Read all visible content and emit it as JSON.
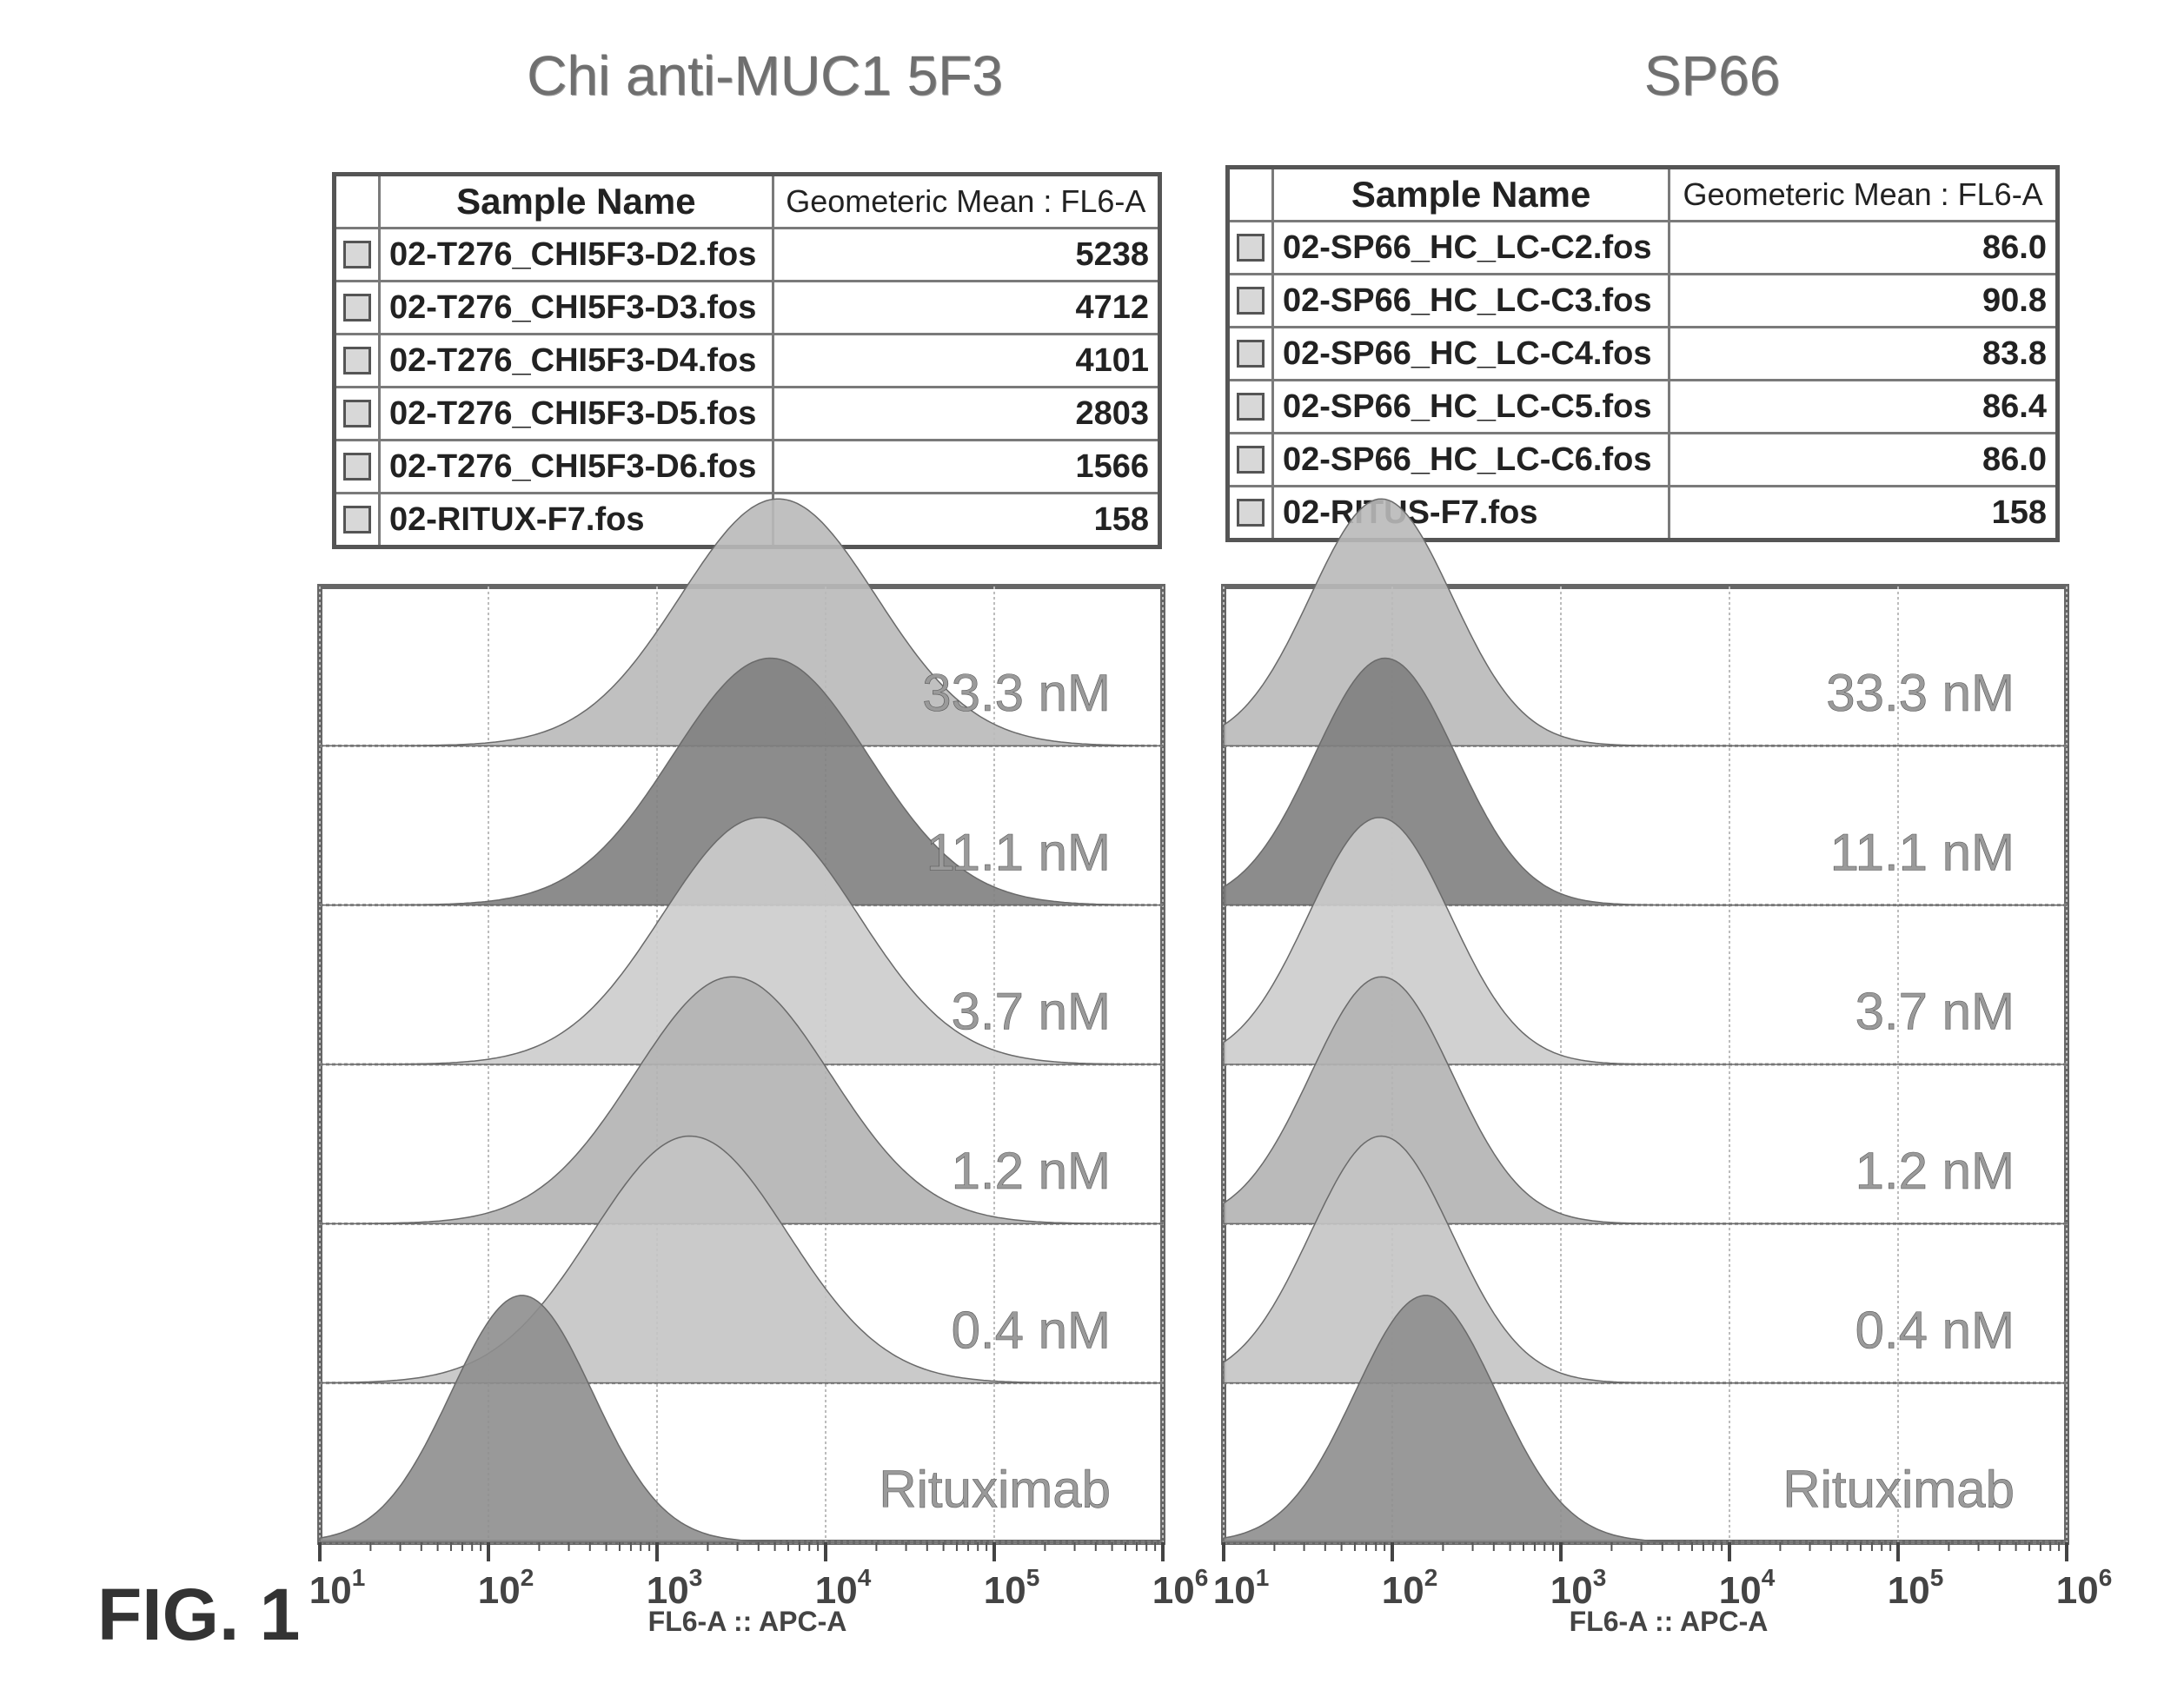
{
  "figure_label": "FIG. 1",
  "chart_data": [
    {
      "type": "table",
      "title": "Chi anti-MUC1 5F3",
      "columns": [
        "Sample Name",
        "Geometeric Mean : FL6-A"
      ],
      "rows": [
        {
          "name": "02-T276_CHI5F3-D2.fos",
          "mean": "5238"
        },
        {
          "name": "02-T276_CHI5F3-D3.fos",
          "mean": "4712"
        },
        {
          "name": "02-T276_CHI5F3-D4.fos",
          "mean": "4101"
        },
        {
          "name": "02-T276_CHI5F3-D5.fos",
          "mean": "2803"
        },
        {
          "name": "02-T276_CHI5F3-D6.fos",
          "mean": "1566"
        },
        {
          "name": "02-RITUX-F7.fos",
          "mean": "158"
        }
      ],
      "histogram": {
        "type": "area",
        "xlabel": "FL6-A :: APC-A",
        "xscale": "log",
        "xlim": [
          10,
          1000000
        ],
        "xticks": [
          "10",
          "10",
          "10",
          "10",
          "10",
          "10"
        ],
        "xtick_exponents": [
          "1",
          "2",
          "3",
          "4",
          "5",
          "6"
        ],
        "grid": true,
        "series": [
          {
            "name": "33.3 nM",
            "geo_mean": 5238
          },
          {
            "name": "11.1 nM",
            "geo_mean": 4712
          },
          {
            "name": "3.7 nM",
            "geo_mean": 4101
          },
          {
            "name": "1.2 nM",
            "geo_mean": 2803
          },
          {
            "name": "0.4 nM",
            "geo_mean": 1566
          },
          {
            "name": "Rituximab",
            "geo_mean": 158
          }
        ]
      }
    },
    {
      "type": "table",
      "title": "SP66",
      "columns": [
        "Sample Name",
        "Geometeric Mean : FL6-A"
      ],
      "rows": [
        {
          "name": "02-SP66_HC_LC-C2.fos",
          "mean": "86.0"
        },
        {
          "name": "02-SP66_HC_LC-C3.fos",
          "mean": "90.8"
        },
        {
          "name": "02-SP66_HC_LC-C4.fos",
          "mean": "83.8"
        },
        {
          "name": "02-SP66_HC_LC-C5.fos",
          "mean": "86.4"
        },
        {
          "name": "02-SP66_HC_LC-C6.fos",
          "mean": "86.0"
        },
        {
          "name": "02-RITUS-F7.fos",
          "mean": "158"
        }
      ],
      "histogram": {
        "type": "area",
        "xlabel": "FL6-A :: APC-A",
        "xscale": "log",
        "xlim": [
          10,
          1000000
        ],
        "xticks": [
          "10",
          "10",
          "10",
          "10",
          "10",
          "10"
        ],
        "xtick_exponents": [
          "1",
          "2",
          "3",
          "4",
          "5",
          "6"
        ],
        "grid": true,
        "series": [
          {
            "name": "33.3 nM",
            "geo_mean": 86.0
          },
          {
            "name": "11.1 nM",
            "geo_mean": 90.8
          },
          {
            "name": "3.7 nM",
            "geo_mean": 83.8
          },
          {
            "name": "1.2 nM",
            "geo_mean": 86.4
          },
          {
            "name": "0.4 nM",
            "geo_mean": 86.0
          },
          {
            "name": "Rituximab",
            "geo_mean": 158
          }
        ]
      }
    }
  ]
}
